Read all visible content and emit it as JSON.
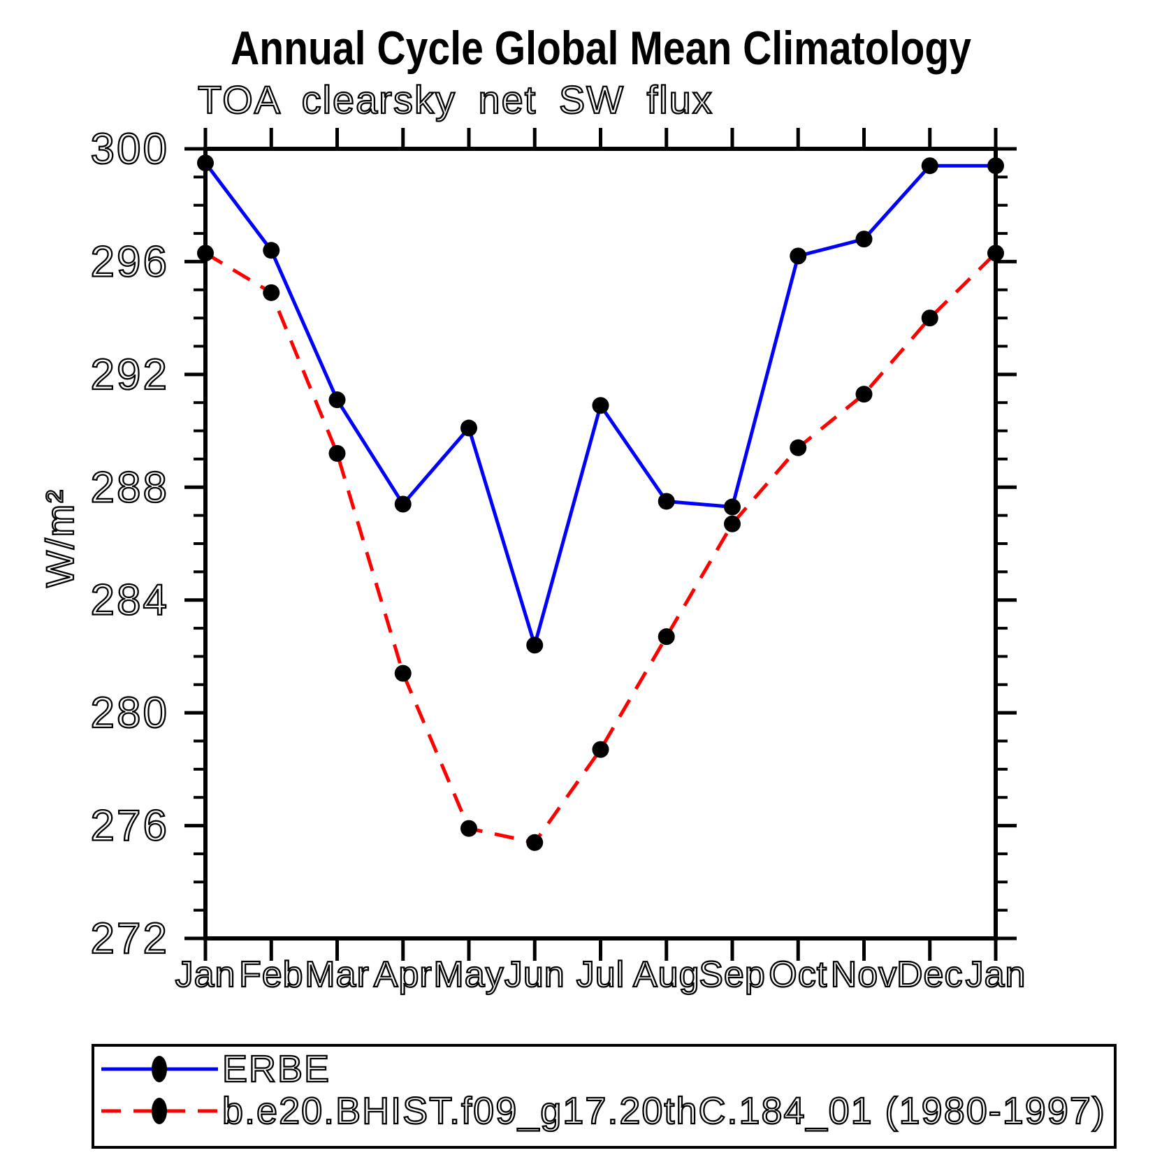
{
  "chart_data": {
    "type": "line",
    "title": "Annual Cycle Global Mean Climatology",
    "subtitle": "TOA clearsky net SW flux",
    "ylabel": "W/m²",
    "xlabel": "",
    "categories": [
      "Jan",
      "Feb",
      "Mar",
      "Apr",
      "May",
      "Jun",
      "Jul",
      "Aug",
      "Sep",
      "Oct",
      "Nov",
      "Dec",
      "Jan"
    ],
    "ylim": [
      272,
      300
    ],
    "y_major_step": 4,
    "y_minor_step": 1,
    "y_tick_labels": [
      "272",
      "276",
      "280",
      "284",
      "288",
      "292",
      "296",
      "300"
    ],
    "grid": false,
    "legend_position": "bottom",
    "axis_color": "#000000",
    "series": [
      {
        "name": "ERBE",
        "color": "#0000ff",
        "style": "solid",
        "marker_color": "#000000",
        "values": [
          299.5,
          296.4,
          291.1,
          287.4,
          290.1,
          282.4,
          290.9,
          287.5,
          287.3,
          296.2,
          296.8,
          299.4,
          299.4
        ]
      },
      {
        "name": "b.e20.BHIST.f09_g17.20thC.184_01 (1980-1997)",
        "color": "#ff0000",
        "style": "dashed",
        "marker_color": "#000000",
        "values": [
          296.3,
          294.9,
          289.2,
          281.4,
          275.9,
          275.4,
          278.7,
          282.7,
          286.7,
          289.4,
          291.3,
          294.0,
          296.3
        ]
      }
    ]
  }
}
